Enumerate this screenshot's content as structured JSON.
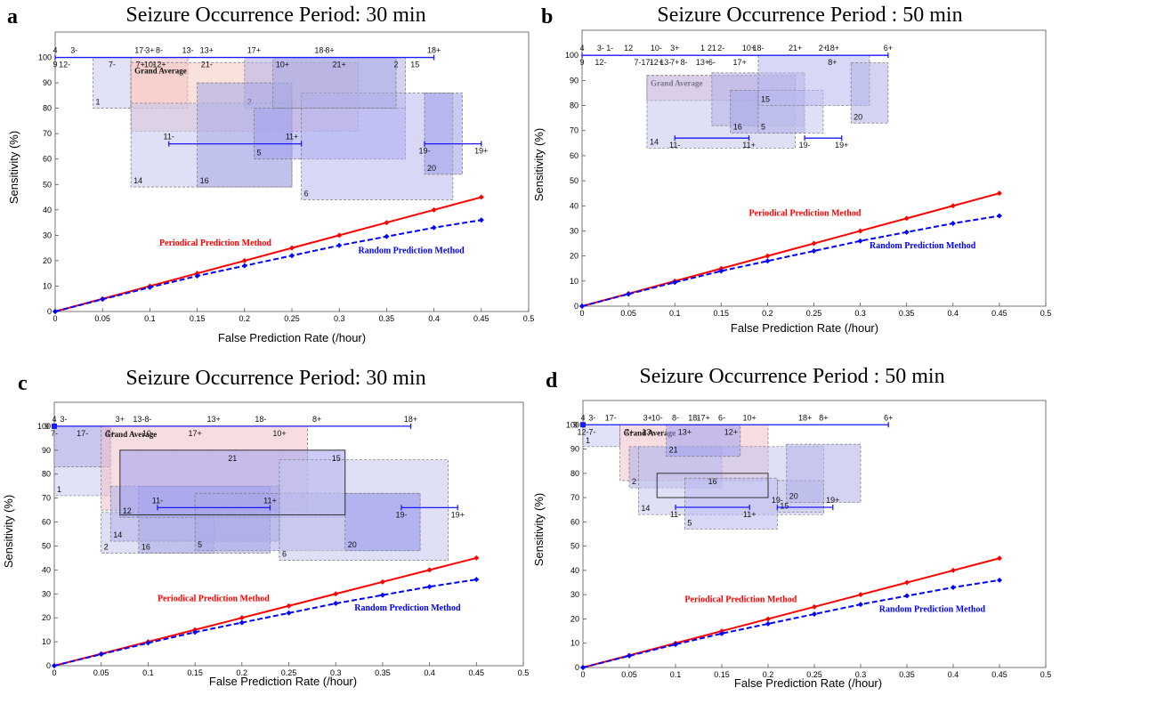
{
  "chart_data": [
    {
      "panel": "a",
      "type": "line",
      "title": "Seizure Occurrence Period: 30 min",
      "xlabel": "False Prediction Rate (/hour)",
      "ylabel": "Sensitivity (%)",
      "xlim": [
        0,
        0.5
      ],
      "ylim": [
        0,
        110
      ],
      "xticks": [
        0,
        0.05,
        0.1,
        0.15,
        0.2,
        0.25,
        0.3,
        0.35,
        0.4,
        0.45,
        0.5
      ],
      "yticks": [
        0,
        10,
        20,
        30,
        40,
        50,
        60,
        70,
        80,
        90,
        100
      ],
      "series": [
        {
          "name": "Periodical Prediction Method",
          "color": "#ff0000",
          "style": "solid",
          "x": [
            0,
            0.05,
            0.1,
            0.15,
            0.2,
            0.25,
            0.3,
            0.35,
            0.4,
            0.45
          ],
          "y": [
            0,
            5,
            10,
            15,
            20,
            25,
            30,
            35,
            40,
            45
          ]
        },
        {
          "name": "Random Prediction Method",
          "color": "#0000ff",
          "style": "dashed",
          "x": [
            0,
            0.05,
            0.1,
            0.15,
            0.2,
            0.25,
            0.3,
            0.35,
            0.4,
            0.45
          ],
          "y": [
            0,
            4.8,
            9.5,
            14,
            18,
            22,
            26,
            29.5,
            33,
            36
          ]
        }
      ],
      "series_label_pos": [
        [
          0.11,
          26
        ],
        [
          0.32,
          23
        ]
      ],
      "rects": [
        {
          "x0": 0.04,
          "x1": 0.08,
          "y0": 80,
          "y1": 100,
          "color": "#c8c8f0",
          "label": "1"
        },
        {
          "x0": 0.08,
          "x1": 0.14,
          "y0": 80,
          "y1": 100,
          "color": "#f0c0c8",
          "label": ""
        },
        {
          "x0": 0.08,
          "x1": 0.32,
          "y0": 71,
          "y1": 98,
          "color": "#f5c9c0",
          "label": "Grand Average"
        },
        {
          "x0": 0.2,
          "x1": 0.37,
          "y0": 80,
          "y1": 100,
          "color": "#b0b0e8",
          "label": "2"
        },
        {
          "x0": 0.08,
          "x1": 0.25,
          "y0": 49,
          "y1": 82,
          "color": "#c4c4ee",
          "label": "14"
        },
        {
          "x0": 0.15,
          "x1": 0.25,
          "y0": 49,
          "y1": 90,
          "color": "#a8a8e8",
          "label": "16"
        },
        {
          "x0": 0.21,
          "x1": 0.37,
          "y0": 60,
          "y1": 80,
          "color": "#a0a0f0",
          "label": "5"
        },
        {
          "x0": 0.26,
          "x1": 0.42,
          "y0": 44,
          "y1": 86,
          "color": "#b8b8ee",
          "label": "6"
        },
        {
          "x0": 0.39,
          "x1": 0.43,
          "y0": 54,
          "y1": 86,
          "color": "#9c9cea",
          "label": "20"
        },
        {
          "x0": 0.23,
          "x1": 0.36,
          "y0": 80,
          "y1": 100,
          "color": "#a8a8e4",
          "label": ""
        }
      ],
      "hlines": [
        {
          "x0": 0,
          "x1": 0.4,
          "y": 100,
          "labels_above": [
            "4",
            "3-",
            "17-",
            "3+",
            "8-",
            "13-",
            "13+",
            "17+",
            "18-",
            "8+",
            "18+"
          ],
          "labels_above_x": [
            0,
            0.02,
            0.09,
            0.1,
            0.11,
            0.14,
            0.16,
            0.21,
            0.28,
            0.29,
            0.4
          ],
          "labels_below": [
            "9",
            "12-",
            "7-",
            "7+",
            "10-",
            "12+",
            "21-",
            "10+",
            "21+",
            "2",
            "15"
          ],
          "labels_below_x": [
            0,
            0.01,
            0.06,
            0.09,
            0.1,
            0.11,
            0.16,
            0.24,
            0.3,
            0.36,
            0.38
          ]
        },
        {
          "x0": 0.12,
          "x1": 0.26,
          "y": 66,
          "labels_above": [
            "11-",
            "11+"
          ],
          "labels_above_x": [
            0.12,
            0.25
          ],
          "labels_below": [],
          "labels_below_x": []
        },
        {
          "x0": 0.39,
          "x1": 0.45,
          "y": 66,
          "labels_above": [],
          "labels_above_x": [],
          "labels_below": [
            "19-",
            "19+"
          ],
          "labels_below_x": [
            0.39,
            0.45
          ]
        }
      ]
    },
    {
      "panel": "b",
      "type": "line",
      "title": "Seizure Occurrence Period : 50 min",
      "xlabel": "False Prediction Rate (/hour)",
      "ylabel": "Sensitivity (%)",
      "xlim": [
        0,
        0.5
      ],
      "ylim": [
        0,
        110
      ],
      "xticks": [
        0,
        0.05,
        0.1,
        0.15,
        0.2,
        0.25,
        0.3,
        0.35,
        0.4,
        0.45,
        0.5
      ],
      "yticks": [
        0,
        10,
        20,
        30,
        40,
        50,
        60,
        70,
        80,
        90,
        100
      ],
      "series": [
        {
          "name": "Periodical Prediction Method",
          "color": "#ff0000",
          "style": "solid",
          "x": [
            0,
            0.05,
            0.1,
            0.15,
            0.2,
            0.25,
            0.3,
            0.35,
            0.4,
            0.45
          ],
          "y": [
            0,
            5,
            10,
            15,
            20,
            25,
            30,
            35,
            40,
            45
          ]
        },
        {
          "name": "Random Prediction Method",
          "color": "#0000ff",
          "style": "dashed",
          "x": [
            0,
            0.05,
            0.1,
            0.15,
            0.2,
            0.25,
            0.3,
            0.35,
            0.4,
            0.45
          ],
          "y": [
            0,
            4.8,
            9.5,
            14,
            18,
            22,
            26,
            29.5,
            33,
            36
          ]
        }
      ],
      "series_label_pos": [
        [
          0.18,
          36
        ],
        [
          0.31,
          23
        ]
      ],
      "rects": [
        {
          "x0": 0.07,
          "x1": 0.23,
          "y0": 82,
          "y1": 92,
          "color": "#f0c0c8",
          "label": "Grand Average"
        },
        {
          "x0": 0.07,
          "x1": 0.23,
          "y0": 63,
          "y1": 92,
          "color": "#c4c4ee",
          "label": "14"
        },
        {
          "x0": 0.14,
          "x1": 0.24,
          "y0": 72,
          "y1": 93,
          "color": "#b0b0e8",
          "label": ""
        },
        {
          "x0": 0.16,
          "x1": 0.24,
          "y0": 69,
          "y1": 86,
          "color": "#a8a8e8",
          "label": "16"
        },
        {
          "x0": 0.19,
          "x1": 0.26,
          "y0": 69,
          "y1": 86,
          "color": "#c4c4ee",
          "label": "5"
        },
        {
          "x0": 0.19,
          "x1": 0.31,
          "y0": 80,
          "y1": 100,
          "color": "#b8b8ee",
          "label": "15"
        },
        {
          "x0": 0.29,
          "x1": 0.33,
          "y0": 73,
          "y1": 97,
          "color": "#b0b0e8",
          "label": "20"
        }
      ],
      "hlines": [
        {
          "x0": 0,
          "x1": 0.33,
          "y": 100,
          "labels_above": [
            "4",
            "3-",
            "1-",
            "12",
            "10-",
            "3+",
            "1",
            "21",
            "2-",
            "10+",
            "18-",
            "21+",
            "2+",
            "18+",
            "6+"
          ],
          "labels_above_x": [
            0,
            0.02,
            0.03,
            0.05,
            0.08,
            0.1,
            0.13,
            0.14,
            0.15,
            0.18,
            0.19,
            0.23,
            0.26,
            0.27,
            0.33
          ],
          "labels_below": [
            "9",
            "12-",
            "7-",
            "17-",
            "12+",
            "13-",
            "7+",
            "8-",
            "13+",
            "6-",
            "17+",
            "8+"
          ],
          "labels_below_x": [
            0,
            0.02,
            0.06,
            0.07,
            0.08,
            0.09,
            0.1,
            0.11,
            0.13,
            0.14,
            0.17,
            0.27
          ]
        },
        {
          "x0": 0.1,
          "x1": 0.18,
          "y": 67,
          "labels_above": [],
          "labels_above_x": [],
          "labels_below": [
            "11-",
            "11+"
          ],
          "labels_below_x": [
            0.1,
            0.18
          ]
        },
        {
          "x0": 0.24,
          "x1": 0.28,
          "y": 67,
          "labels_above": [],
          "labels_above_x": [],
          "labels_below": [
            "19-",
            "19+"
          ],
          "labels_below_x": [
            0.24,
            0.28
          ]
        }
      ]
    },
    {
      "panel": "c",
      "type": "line",
      "title": "Seizure Occurrence Period: 30 min",
      "xlabel": "False Prediction Rate (/hour)",
      "ylabel": "Sensitivity (%)",
      "xlim": [
        0,
        0.5
      ],
      "ylim": [
        0,
        110
      ],
      "xticks": [
        0,
        0.05,
        0.1,
        0.15,
        0.2,
        0.25,
        0.3,
        0.35,
        0.4,
        0.45,
        0.5
      ],
      "yticks": [
        0,
        10,
        20,
        30,
        40,
        50,
        60,
        70,
        80,
        90,
        100
      ],
      "series": [
        {
          "name": "Periodical Prediction Method",
          "color": "#ff0000",
          "style": "solid",
          "x": [
            0,
            0.05,
            0.1,
            0.15,
            0.2,
            0.25,
            0.3,
            0.35,
            0.4,
            0.45
          ],
          "y": [
            0,
            5,
            10,
            15,
            20,
            25,
            30,
            35,
            40,
            45
          ]
        },
        {
          "name": "Random Prediction Method",
          "color": "#0000ff",
          "style": "dashed",
          "x": [
            0,
            0.05,
            0.1,
            0.15,
            0.2,
            0.25,
            0.3,
            0.35,
            0.4,
            0.45
          ],
          "y": [
            0,
            4.8,
            9.5,
            14,
            18,
            22,
            26,
            29.5,
            33,
            36
          ]
        }
      ],
      "series_label_pos": [
        [
          0.11,
          27
        ],
        [
          0.32,
          23
        ]
      ],
      "rects": [
        {
          "x0": 0,
          "x1": 0.06,
          "y0": 71,
          "y1": 100,
          "color": "#c8c8f0",
          "label": "1"
        },
        {
          "x0": 0,
          "x1": 0.06,
          "y0": 83,
          "y1": 100,
          "color": "#b0b0e8",
          "label": ""
        },
        {
          "x0": 0.05,
          "x1": 0.27,
          "y0": 65,
          "y1": 100,
          "color": "#f0c0c8",
          "label": "Grand Average"
        },
        {
          "x0": 0.05,
          "x1": 0.17,
          "y0": 47,
          "y1": 64,
          "color": "#c4c4ee",
          "label": "2"
        },
        {
          "x0": 0.06,
          "x1": 0.24,
          "y0": 52,
          "y1": 75,
          "color": "#b0b0e8",
          "label": "14"
        },
        {
          "x0": 0.09,
          "x1": 0.23,
          "y0": 47,
          "y1": 75,
          "color": "#a8a8e8",
          "label": "16"
        },
        {
          "x0": 0.07,
          "x1": 0.31,
          "y0": 62,
          "y1": 90,
          "color": "#a0a0f0",
          "label": "12"
        },
        {
          "x0": 0.15,
          "x1": 0.39,
          "y0": 48,
          "y1": 72,
          "color": "#a8a8e8",
          "label": "5"
        },
        {
          "x0": 0.24,
          "x1": 0.42,
          "y0": 44,
          "y1": 86,
          "color": "#c4c4ee",
          "label": "6"
        },
        {
          "x0": 0.31,
          "x1": 0.39,
          "y0": 48,
          "y1": 72,
          "color": "#a0a0f0",
          "label": "20"
        }
      ],
      "outline_rects": [
        {
          "x0": 0.07,
          "x1": 0.31,
          "y0": 63,
          "y1": 90,
          "label": "21",
          "label2": "15"
        }
      ],
      "hlines": [
        {
          "x0": 0,
          "x1": 0.38,
          "y": 100,
          "labels_above": [
            "4",
            "3-",
            "3+",
            "13-",
            "8-",
            "13+",
            "18-",
            "8+",
            "18+"
          ],
          "labels_above_x": [
            0,
            0.01,
            0.07,
            0.09,
            0.1,
            0.17,
            0.22,
            0.28,
            0.38
          ],
          "labels_below": [
            "7-",
            "17-",
            "7+",
            "10-",
            "17+",
            "10+"
          ],
          "labels_below_x": [
            0,
            0.03,
            0.06,
            0.1,
            0.15,
            0.24
          ]
        },
        {
          "x0": 0.11,
          "x1": 0.23,
          "y": 66,
          "labels_above": [
            "11-",
            "11+"
          ],
          "labels_above_x": [
            0.11,
            0.23
          ],
          "labels_below": [],
          "labels_below_x": []
        },
        {
          "x0": 0.37,
          "x1": 0.43,
          "y": 66,
          "labels_above": [],
          "labels_above_x": [],
          "labels_below": [
            "19-",
            "19+"
          ],
          "labels_below_x": [
            0.37,
            0.43
          ]
        }
      ],
      "extra_label": "9"
    },
    {
      "panel": "d",
      "type": "line",
      "title": "Seizure Occurrence Period : 50 min",
      "xlabel": "False Prediction Rate (/hour)",
      "ylabel": "Sensitivity (%)",
      "xlim": [
        0,
        0.5
      ],
      "ylim": [
        0,
        110
      ],
      "xticks": [
        0,
        0.05,
        0.1,
        0.15,
        0.2,
        0.25,
        0.3,
        0.35,
        0.4,
        0.45,
        0.5
      ],
      "yticks": [
        0,
        10,
        20,
        30,
        40,
        50,
        60,
        70,
        80,
        90,
        100
      ],
      "series": [
        {
          "name": "Periodical Prediction Method",
          "color": "#ff0000",
          "style": "solid",
          "x": [
            0,
            0.05,
            0.1,
            0.15,
            0.2,
            0.25,
            0.3,
            0.35,
            0.4,
            0.45
          ],
          "y": [
            0,
            5,
            10,
            15,
            20,
            25,
            30,
            35,
            40,
            45
          ]
        },
        {
          "name": "Random Prediction Method",
          "color": "#0000ff",
          "style": "dashed",
          "x": [
            0,
            0.05,
            0.1,
            0.15,
            0.2,
            0.25,
            0.3,
            0.35,
            0.4,
            0.45
          ],
          "y": [
            0,
            4.8,
            9.5,
            14,
            18,
            22,
            26,
            29.5,
            33,
            36
          ]
        }
      ],
      "series_label_pos": [
        [
          0.11,
          27
        ],
        [
          0.32,
          23
        ]
      ],
      "rects": [
        {
          "x0": 0,
          "x1": 0.04,
          "y0": 91,
          "y1": 100,
          "color": "#c8c8f0",
          "label": "1"
        },
        {
          "x0": 0.04,
          "x1": 0.2,
          "y0": 77,
          "y1": 100,
          "color": "#f0c0c8",
          "label": "Grand Average"
        },
        {
          "x0": 0.05,
          "x1": 0.15,
          "y0": 74,
          "y1": 91,
          "color": "#b0b0e8",
          "label": "2"
        },
        {
          "x0": 0.06,
          "x1": 0.26,
          "y0": 63,
          "y1": 91,
          "color": "#c4c4ee",
          "label": "14"
        },
        {
          "x0": 0.09,
          "x1": 0.17,
          "y0": 87,
          "y1": 100,
          "color": "#a0a0f0",
          "label": "21"
        },
        {
          "x0": 0.11,
          "x1": 0.21,
          "y0": 57,
          "y1": 78,
          "color": "#b8b8ee",
          "label": "5"
        },
        {
          "x0": 0.21,
          "x1": 0.26,
          "y0": 64,
          "y1": 77,
          "color": "#c4c4ee",
          "label": "15"
        },
        {
          "x0": 0.22,
          "x1": 0.3,
          "y0": 68,
          "y1": 92,
          "color": "#b0b0e8",
          "label": "20"
        }
      ],
      "outline_rects": [
        {
          "x0": 0.08,
          "x1": 0.2,
          "y0": 70,
          "y1": 80,
          "label": "16",
          "label2": ""
        }
      ],
      "hlines": [
        {
          "x0": 0,
          "x1": 0.33,
          "y": 100,
          "labels_above": [
            "4",
            "3-",
            "17-",
            "3+",
            "10-",
            "8-",
            "18-",
            "17+",
            "6-",
            "10+",
            "18+",
            "8+",
            "6+"
          ],
          "labels_above_x": [
            0,
            0.01,
            0.03,
            0.07,
            0.08,
            0.1,
            0.12,
            0.13,
            0.15,
            0.18,
            0.24,
            0.26,
            0.33
          ],
          "labels_below": [
            "12-",
            "7-",
            "7+",
            "13-",
            "13+",
            "12+"
          ],
          "labels_below_x": [
            0,
            0.01,
            0.05,
            0.07,
            0.11,
            0.16
          ]
        },
        {
          "x0": 0.1,
          "x1": 0.18,
          "y": 66,
          "labels_above": [],
          "labels_above_x": [],
          "labels_below": [
            "11-",
            "11+"
          ],
          "labels_below_x": [
            0.1,
            0.18
          ]
        },
        {
          "x0": 0.21,
          "x1": 0.27,
          "y": 66,
          "labels_above": [
            "19-",
            "19+"
          ],
          "labels_above_x": [
            0.21,
            0.27
          ],
          "labels_below": [],
          "labels_below_x": []
        }
      ],
      "extra_label": "9"
    }
  ]
}
